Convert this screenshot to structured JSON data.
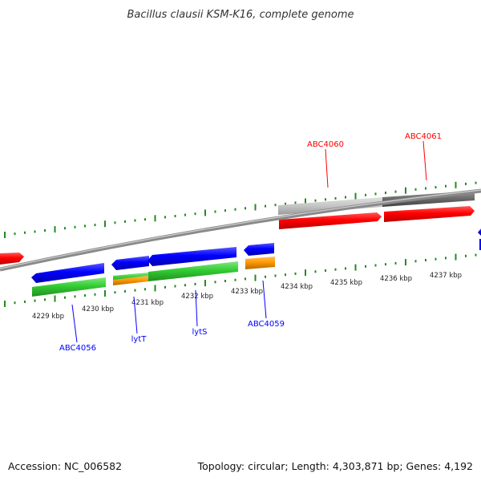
{
  "title": "Bacillus clausii KSM-K16, complete genome",
  "footer": {
    "accession": "Accession: NC_006582",
    "summary": "Topology: circular; Length: 4,303,871 bp; Genes: 4,192"
  },
  "colors": {
    "forward_gene": "#ff0000",
    "reverse_gene": "#0000ff",
    "green_feature": "#33cc33",
    "orange_feature": "#ff9900",
    "backbone": "#8a8a8a",
    "ticks": "#228b22"
  },
  "tick_labels": [
    "4229 kbp",
    "4230 kbp",
    "4231 kbp",
    "4232 kbp",
    "4233 kbp",
    "4234 kbp",
    "4235 kbp",
    "4236 kbp",
    "4237 kbp"
  ],
  "gene_labels": {
    "abc4060": "ABC4060",
    "abc4061": "ABC4061",
    "abc4056": "ABC4056",
    "lytT": "lytT",
    "lytS": "lytS",
    "abc4059": "ABC4059"
  }
}
